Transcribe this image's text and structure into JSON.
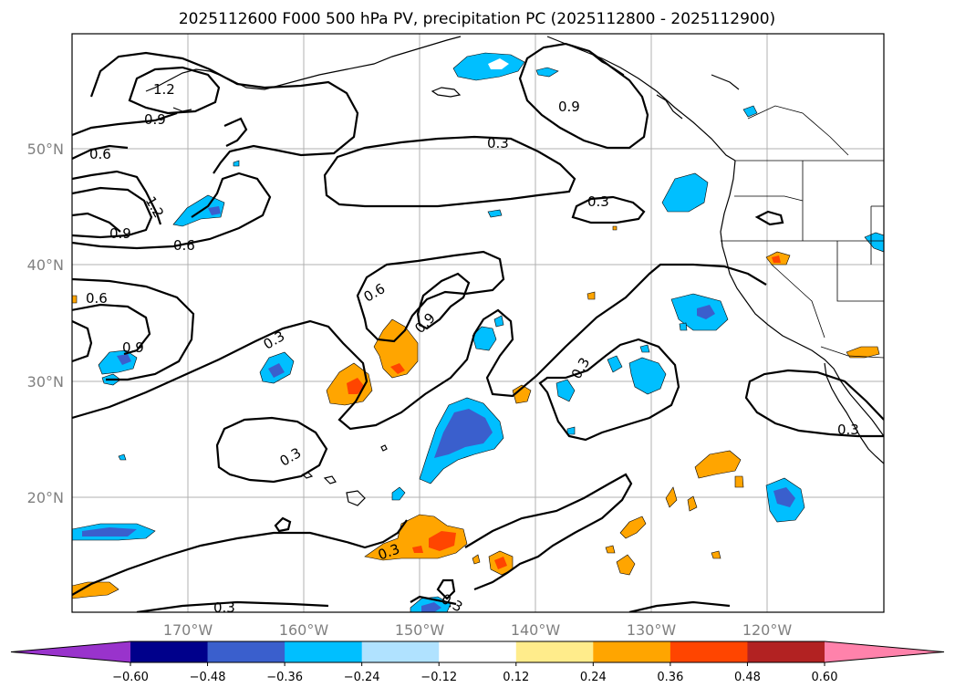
{
  "title": "2025112600 F000 500 hPa PV, precipitation PC (2025112800 - 2025112900)",
  "lat_labels": [
    "50°N",
    "40°N",
    "30°N",
    "20°N"
  ],
  "lon_labels": [
    "170°W",
    "160°W",
    "150°W",
    "140°W",
    "130°W",
    "120°W"
  ],
  "colorbar": {
    "colors": [
      "#9933cc",
      "#00008b",
      "#3a5fcd",
      "#00bfff",
      "#b0e2ff",
      "#ffffff",
      "#ffec8b",
      "#ffa500",
      "#ff4500",
      "#b22222",
      "#ff82ab"
    ],
    "ticks": [
      "−0.60",
      "−0.48",
      "−0.36",
      "−0.24",
      "−0.12",
      "0.12",
      "0.24",
      "0.36",
      "0.48",
      "0.60"
    ]
  },
  "contour_labels": [
    "1.2",
    "0.9",
    "0.6",
    "1.2",
    "0.9",
    "0.6",
    "0.9",
    "0.3",
    "0.3",
    "0.6",
    "0.9",
    "0.3",
    "0.6",
    "0.9",
    "0.3",
    "0.3",
    "0.3",
    "0.3",
    "0.3",
    "0.3"
  ]
}
